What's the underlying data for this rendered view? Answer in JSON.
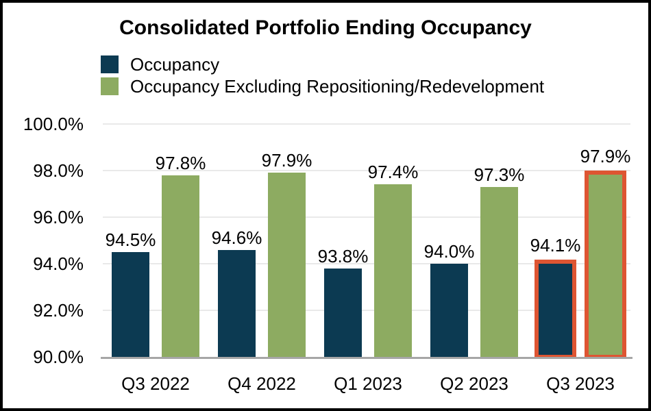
{
  "chart_data": {
    "type": "bar",
    "title": "Consolidated Portfolio Ending Occupancy",
    "categories": [
      "Q3 2022",
      "Q4 2022",
      "Q1 2023",
      "Q2 2023",
      "Q3 2023"
    ],
    "series": [
      {
        "name": "Occupancy",
        "color": "#0C3A52",
        "values": [
          94.5,
          94.6,
          93.8,
          94.0,
          94.1
        ],
        "labels": [
          "94.5%",
          "94.6%",
          "93.8%",
          "94.0%",
          "94.1%"
        ]
      },
      {
        "name": "Occupancy Excluding Repositioning/Redevelopment",
        "color": "#8DAB61",
        "values": [
          97.8,
          97.9,
          97.4,
          97.3,
          97.9
        ],
        "labels": [
          "97.8%",
          "97.9%",
          "97.4%",
          "97.3%",
          "97.9%"
        ]
      }
    ],
    "y_axis": {
      "min": 90,
      "max": 100,
      "tick_step": 2,
      "tick_labels": [
        "90.0%",
        "92.0%",
        "94.0%",
        "96.0%",
        "98.0%",
        "100.0%"
      ]
    },
    "highlight": {
      "category": "Q3 2023",
      "category_index": 4,
      "outline_color": "#DE5532"
    },
    "legend_position": "top-left",
    "grid": true,
    "colors": {
      "gridline": "#E9E9E9",
      "axis_line": "#A6A6A6",
      "text": "#000000",
      "background": "#FFFFFF",
      "frame_border": "#000000"
    }
  }
}
